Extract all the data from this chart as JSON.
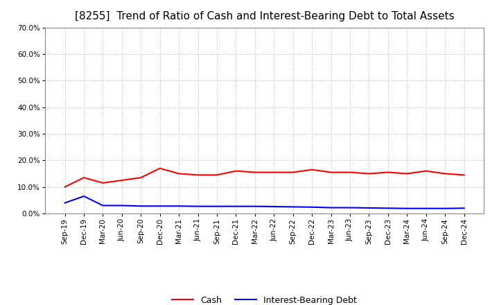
{
  "title": "[8255]  Trend of Ratio of Cash and Interest-Bearing Debt to Total Assets",
  "x_labels": [
    "Sep-19",
    "Dec-19",
    "Mar-20",
    "Jun-20",
    "Sep-20",
    "Dec-20",
    "Mar-21",
    "Jun-21",
    "Sep-21",
    "Dec-21",
    "Mar-22",
    "Jun-22",
    "Sep-22",
    "Dec-22",
    "Mar-23",
    "Jun-23",
    "Sep-23",
    "Dec-23",
    "Mar-24",
    "Jun-24",
    "Sep-24",
    "Dec-24"
  ],
  "cash": [
    10.0,
    13.5,
    11.5,
    12.5,
    13.5,
    17.0,
    15.0,
    14.5,
    14.5,
    16.0,
    15.5,
    15.5,
    15.5,
    16.5,
    15.5,
    15.5,
    15.0,
    15.5,
    15.0,
    16.0,
    15.0,
    14.5
  ],
  "interest_bearing_debt": [
    4.0,
    6.5,
    3.0,
    3.0,
    2.8,
    2.8,
    2.8,
    2.7,
    2.7,
    2.7,
    2.7,
    2.6,
    2.5,
    2.4,
    2.2,
    2.2,
    2.1,
    2.0,
    1.9,
    1.9,
    1.9,
    2.0
  ],
  "cash_color": "#ff0000",
  "debt_color": "#0000ff",
  "background_color": "#ffffff",
  "grid_color": "#aaaaaa",
  "ylim_min": 0,
  "ylim_max": 70,
  "yticks": [
    0,
    10,
    20,
    30,
    40,
    50,
    60,
    70
  ],
  "ytick_labels": [
    "0.0%",
    "10.0%",
    "20.0%",
    "30.0%",
    "40.0%",
    "50.0%",
    "60.0%",
    "70.0%"
  ],
  "title_fontsize": 11,
  "tick_fontsize": 7.5,
  "legend_fontsize": 9,
  "legend_cash": "Cash",
  "legend_debt": "Interest-Bearing Debt"
}
